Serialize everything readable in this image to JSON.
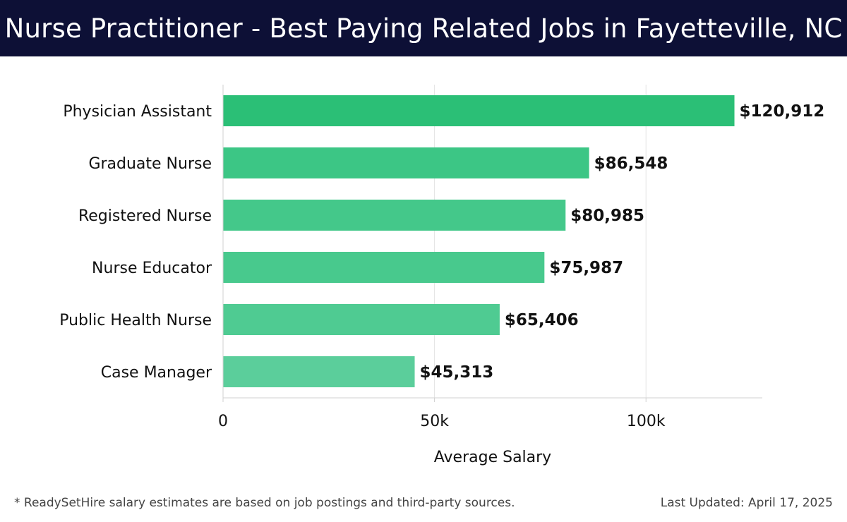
{
  "header": {
    "title": "Nurse Practitioner - Best Paying Related Jobs in Fayetteville, NC"
  },
  "chart_data": {
    "type": "bar",
    "orientation": "horizontal",
    "categories": [
      "Physician Assistant",
      "Graduate Nurse",
      "Registered Nurse",
      "Nurse Educator",
      "Public Health Nurse",
      "Case Manager"
    ],
    "values": [
      120912,
      86548,
      80985,
      75987,
      65406,
      45313
    ],
    "value_labels": [
      "$120,912",
      "$86,548",
      "$80,985",
      "$75,987",
      "$65,406",
      "$45,313"
    ],
    "xlabel": "Average Salary",
    "ylabel": "",
    "xlim": [
      0,
      127500
    ],
    "x_ticks": [
      0,
      50000,
      100000
    ],
    "x_tick_labels": [
      "0",
      "50k",
      "100k"
    ],
    "grid": true,
    "colors": [
      "#2bbf76",
      "#3cc685",
      "#44c88a",
      "#48c98d",
      "#4fcb92",
      "#5bce9b"
    ]
  },
  "footer": {
    "note": "* ReadySetHire salary estimates are based on job postings and third-party sources.",
    "updated": "Last Updated: April 17, 2025"
  }
}
